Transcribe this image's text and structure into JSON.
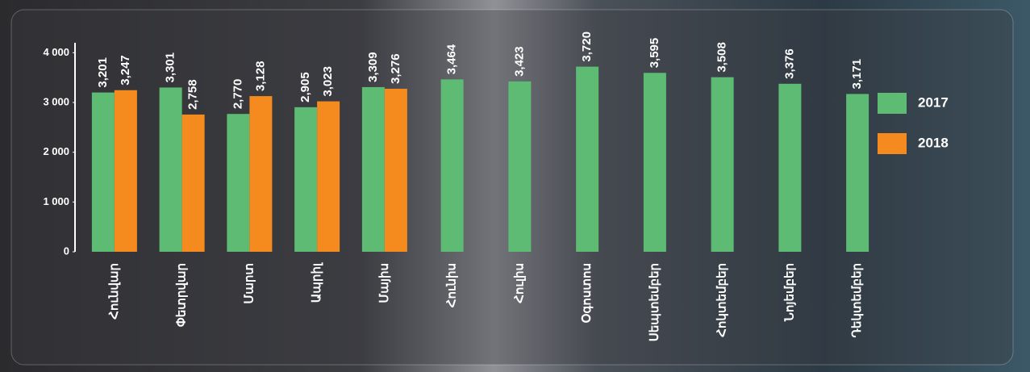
{
  "chart_data": {
    "type": "bar",
    "categories": [
      "Հունվար",
      "Փետրվար",
      "Մարտ",
      "Ապրիլ",
      "Մայիս",
      "Հունիս",
      "Հուլիս",
      "Օգոստոս",
      "Սեպտեմբեր",
      "Հոկտեմբեր",
      "Նոյեմբեր",
      "Դեկտեմբեր"
    ],
    "series": [
      {
        "name": "2017",
        "color": "#5dbb74",
        "values": [
          3201,
          3301,
          2770,
          2905,
          3309,
          3464,
          3423,
          3720,
          3595,
          3508,
          3376,
          3171
        ],
        "value_labels": [
          "3,201",
          "3,301",
          "2,770",
          "2,905",
          "3,309",
          "3,464",
          "3,423",
          "3,720",
          "3,595",
          "3,508",
          "3,376",
          "3,171"
        ]
      },
      {
        "name": "2018",
        "color": "#f58a1f",
        "values": [
          3247,
          2758,
          3128,
          3023,
          3276,
          null,
          null,
          null,
          null,
          null,
          null,
          null
        ],
        "value_labels": [
          "3,247",
          "2,758",
          "3,128",
          "3,023",
          "3,276",
          null,
          null,
          null,
          null,
          null,
          null,
          null
        ]
      }
    ],
    "ylim": [
      0,
      4200
    ],
    "yticks": [
      0,
      {
        "value": 1000,
        "label": "1 000"
      },
      {
        "value": 2000,
        "label": "2 000"
      },
      {
        "value": 3000,
        "label": "3 000"
      },
      {
        "value": 4000,
        "label": "4 000"
      }
    ],
    "legend": "right"
  }
}
